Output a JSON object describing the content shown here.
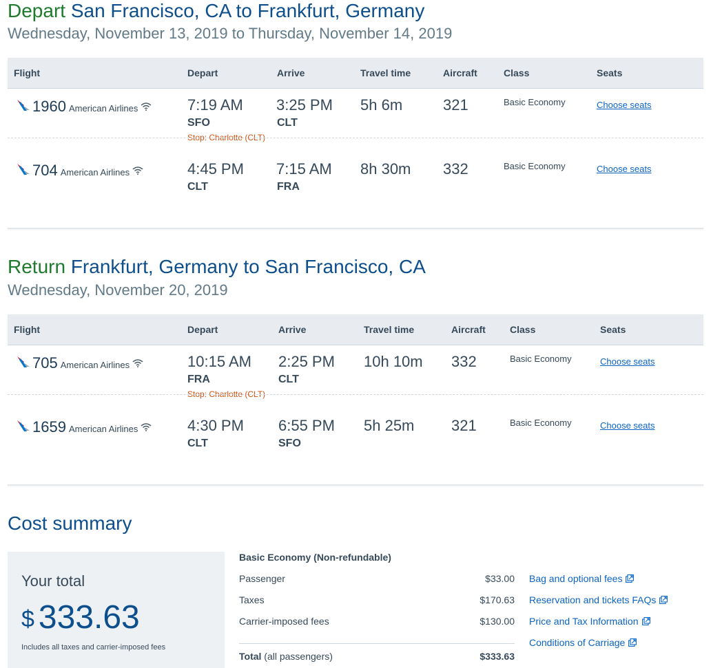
{
  "depart": {
    "label": "Depart",
    "route": "San Francisco, CA to Frankfurt, Germany",
    "dates": "Wednesday, November 13, 2019 to Thursday, November 14, 2019",
    "columns": [
      "Flight",
      "Depart",
      "Arrive",
      "Travel time",
      "Aircraft",
      "Class",
      "Seats"
    ],
    "flights": [
      {
        "number": "1960",
        "airline": "American Airlines",
        "depart_time": "7:19 AM",
        "depart_code": "SFO",
        "arrive_time": "3:25 PM",
        "arrive_code": "CLT",
        "stop": "Stop: Charlotte (CLT)",
        "travel_time": "5h 6m",
        "aircraft": "321",
        "class": "Basic Economy",
        "seats": "Choose seats"
      },
      {
        "number": "704",
        "airline": "American Airlines",
        "depart_time": "4:45 PM",
        "depart_code": "CLT",
        "arrive_time": "7:15 AM",
        "arrive_code": "FRA",
        "stop": "",
        "travel_time": "8h 30m",
        "aircraft": "332",
        "class": "Basic Economy",
        "seats": "Choose seats"
      }
    ]
  },
  "return": {
    "label": "Return",
    "route": "Frankfurt, Germany to San Francisco, CA",
    "dates": "Wednesday, November 20, 2019",
    "columns": [
      "Flight",
      "Depart",
      "Arrive",
      "Travel time",
      "Aircraft",
      "Class",
      "Seats"
    ],
    "flights": [
      {
        "number": "705",
        "airline": "American Airlines",
        "depart_time": "10:15 AM",
        "depart_code": "FRA",
        "arrive_time": "2:25 PM",
        "arrive_code": "CLT",
        "stop": "Stop: Charlotte (CLT)",
        "travel_time": "10h 10m",
        "aircraft": "332",
        "class": "Basic Economy",
        "seats": "Choose seats"
      },
      {
        "number": "1659",
        "airline": "American Airlines",
        "depart_time": "4:30 PM",
        "depart_code": "CLT",
        "arrive_time": "6:55 PM",
        "arrive_code": "SFO",
        "stop": "",
        "travel_time": "5h 25m",
        "aircraft": "321",
        "class": "Basic Economy",
        "seats": "Choose seats"
      }
    ]
  },
  "cost": {
    "title": "Cost summary",
    "your_total_label": "Your total",
    "currency_symbol": "$",
    "total_amount": "333.63",
    "total_note": "Includes all taxes and carrier-imposed fees",
    "fare_type": "Basic Economy (Non-refundable)",
    "lines": [
      {
        "label": "Passenger",
        "value": "$33.00"
      },
      {
        "label": "Taxes",
        "value": "$170.63"
      },
      {
        "label": "Carrier-imposed fees",
        "value": "$130.00"
      }
    ],
    "total_label": "Total",
    "total_qualifier": "(all passengers)",
    "total_value": "$333.63",
    "links": [
      "Bag and optional fees",
      "Reservation and tickets FAQs",
      "Price and Tax Information",
      "Conditions of Carriage"
    ]
  },
  "colors": {
    "heading_blue": "#0d4e8c",
    "label_green": "#1e7a2c",
    "stop_orange": "#d1520f",
    "link_blue": "#0b64c3"
  },
  "icons": {
    "airline_logo": "american-airlines-logo-icon",
    "wifi": "wifi-icon",
    "external_link": "external-link-icon"
  }
}
